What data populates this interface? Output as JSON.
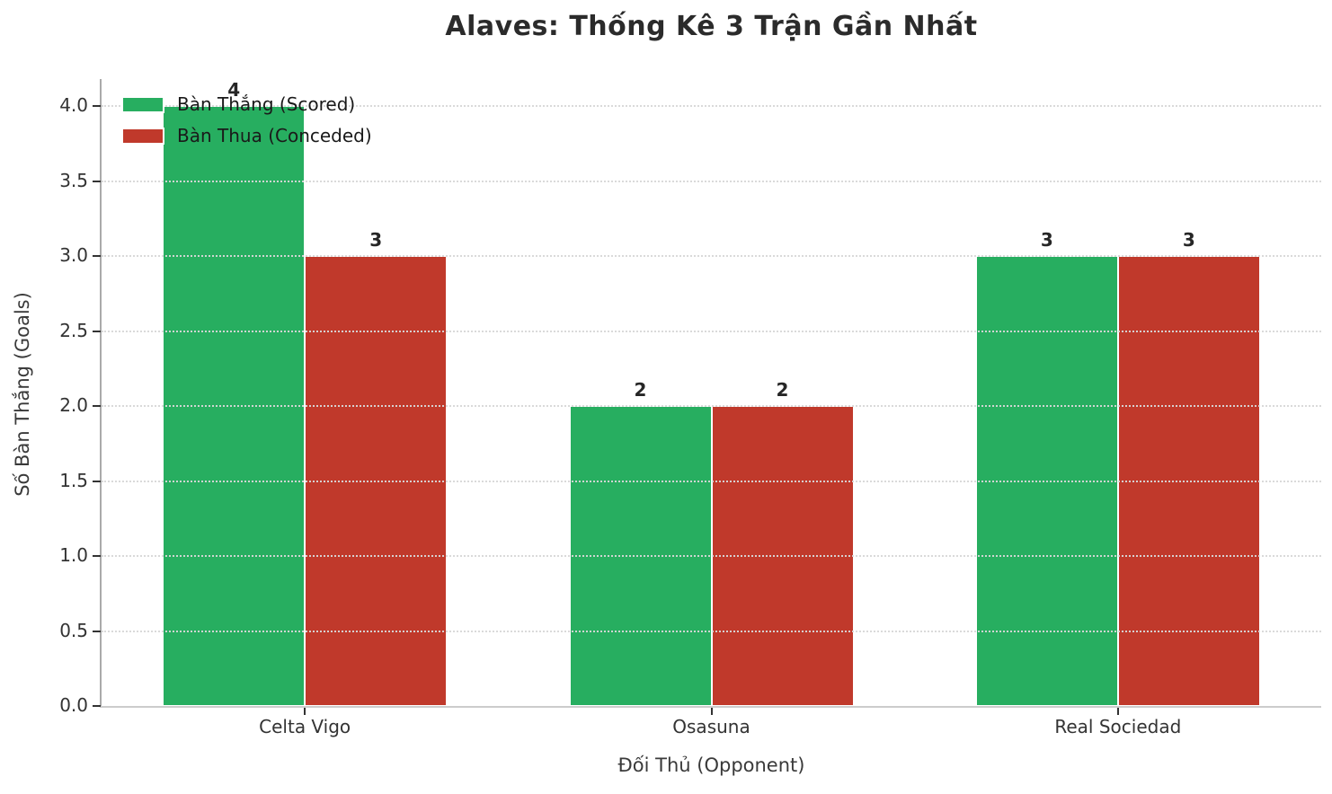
{
  "chart_data": {
    "type": "bar",
    "title": "Alaves: Thống Kê 3 Trận Gần Nhất",
    "xlabel": "Đối Thủ (Opponent)",
    "ylabel": "Số Bàn Thắng (Goals)",
    "categories": [
      "Celta Vigo",
      "Osasuna",
      "Real Sociedad"
    ],
    "series": [
      {
        "name": "Bàn Thắng (Scored)",
        "color": "#27ae60",
        "values": [
          4,
          2,
          3
        ]
      },
      {
        "name": "Bàn Thua (Conceded)",
        "color": "#c0392b",
        "values": [
          3,
          2,
          3
        ]
      }
    ],
    "ylim": [
      0,
      4.18
    ],
    "yticks": [
      0.0,
      0.5,
      1.0,
      1.5,
      2.0,
      2.5,
      3.0,
      3.5,
      4.0
    ],
    "ytick_label_format": "one_decimal",
    "grid": "horizontal-dotted-over-bars",
    "legend_position": "upper-left",
    "bar_value_labels": [
      {
        "category": "Celta Vigo",
        "scored": 4,
        "conceded": 3
      },
      {
        "category": "Osasuna",
        "scored": 2,
        "conceded": 2
      },
      {
        "category": "Real Sociedad",
        "scored": 3,
        "conceded": 3
      }
    ],
    "background_color": "#ffffff",
    "title_color": "#2b2b2b",
    "tick_label_color": "#333333",
    "gridline_color": "#d9d9d9"
  }
}
